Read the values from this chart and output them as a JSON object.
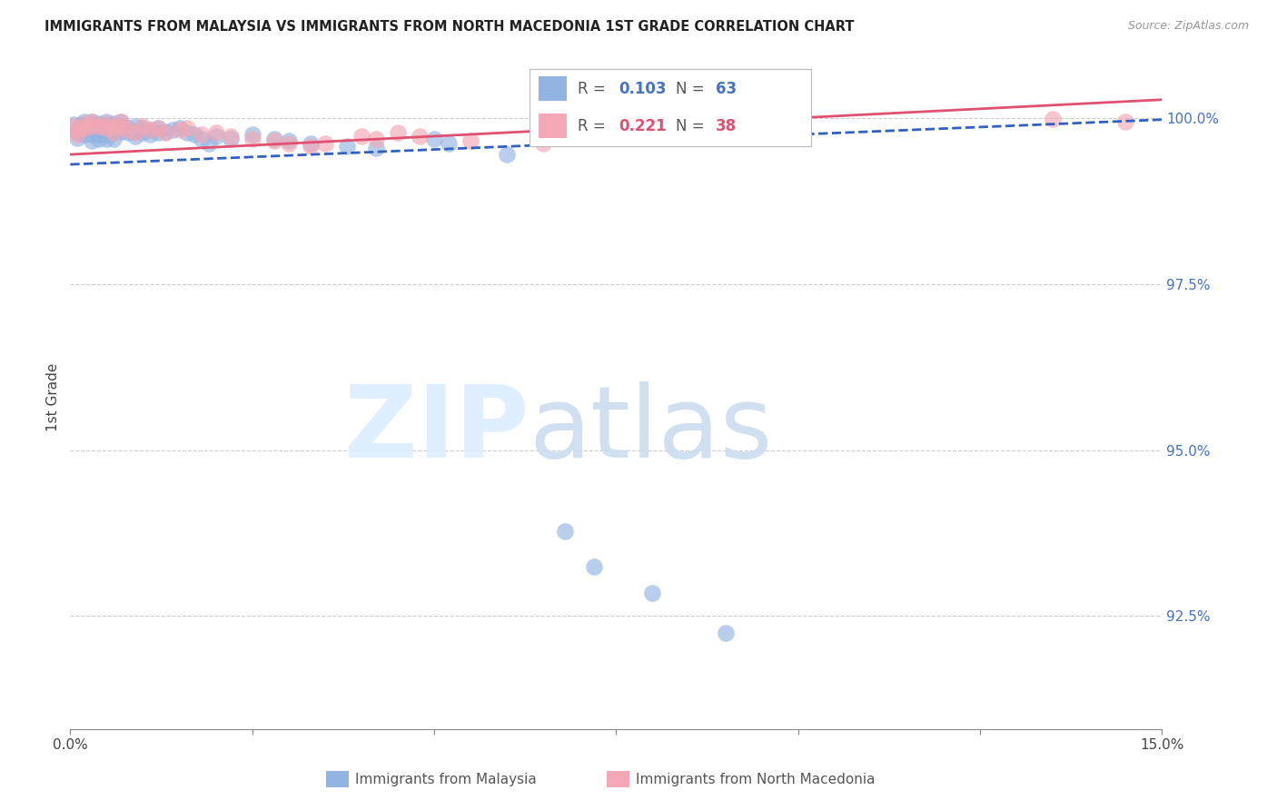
{
  "title": "IMMIGRANTS FROM MALAYSIA VS IMMIGRANTS FROM NORTH MACEDONIA 1ST GRADE CORRELATION CHART",
  "source": "Source: ZipAtlas.com",
  "ylabel": "1st Grade",
  "right_yticks": [
    "100.0%",
    "97.5%",
    "95.0%",
    "92.5%"
  ],
  "right_ytick_vals": [
    1.0,
    0.975,
    0.95,
    0.925
  ],
  "xlim": [
    0.0,
    0.15
  ],
  "ylim": [
    0.908,
    1.008
  ],
  "malaysia_R": 0.103,
  "malaysia_N": 63,
  "macedonia_R": 0.221,
  "macedonia_N": 38,
  "malaysia_color": "#92b4e3",
  "macedonia_color": "#f4a7b4",
  "malaysia_line_color": "#3060c0",
  "macedonia_line_color": "#e05070",
  "malaysia_x": [
    0.0005,
    0.001,
    0.001,
    0.0015,
    0.002,
    0.002,
    0.002,
    0.002,
    0.003,
    0.003,
    0.003,
    0.003,
    0.003,
    0.003,
    0.004,
    0.004,
    0.004,
    0.004,
    0.005,
    0.005,
    0.005,
    0.005,
    0.005,
    0.006,
    0.006,
    0.006,
    0.006,
    0.007,
    0.007,
    0.007,
    0.008,
    0.008,
    0.009,
    0.009,
    0.009,
    0.01,
    0.01,
    0.011,
    0.011,
    0.012,
    0.012,
    0.013,
    0.014,
    0.015,
    0.016,
    0.017,
    0.018,
    0.019,
    0.02,
    0.022,
    0.025,
    0.028,
    0.03,
    0.033,
    0.038,
    0.042,
    0.05,
    0.052,
    0.06,
    0.068,
    0.072,
    0.08,
    0.09
  ],
  "malaysia_y": [
    0.999,
    0.997,
    0.998,
    0.999,
    0.9985,
    0.9975,
    0.999,
    0.9995,
    0.9985,
    0.9975,
    0.9965,
    0.999,
    0.9995,
    0.9988,
    0.9985,
    0.9992,
    0.9975,
    0.9968,
    0.9995,
    0.999,
    0.9985,
    0.9975,
    0.9968,
    0.9992,
    0.9985,
    0.9978,
    0.9968,
    0.9995,
    0.9988,
    0.998,
    0.9985,
    0.9978,
    0.9988,
    0.998,
    0.9972,
    0.9985,
    0.9978,
    0.9982,
    0.9975,
    0.9985,
    0.9978,
    0.998,
    0.9982,
    0.9985,
    0.9978,
    0.9975,
    0.9968,
    0.9962,
    0.9972,
    0.9968,
    0.9975,
    0.9968,
    0.9965,
    0.9962,
    0.9958,
    0.9955,
    0.9968,
    0.9962,
    0.9945,
    0.9378,
    0.9325,
    0.9285,
    0.9225
  ],
  "macedonia_x": [
    0.0005,
    0.001,
    0.001,
    0.002,
    0.002,
    0.003,
    0.003,
    0.004,
    0.005,
    0.005,
    0.006,
    0.006,
    0.007,
    0.007,
    0.008,
    0.009,
    0.01,
    0.011,
    0.012,
    0.013,
    0.015,
    0.016,
    0.018,
    0.02,
    0.022,
    0.025,
    0.028,
    0.03,
    0.033,
    0.035,
    0.04,
    0.042,
    0.045,
    0.048,
    0.055,
    0.065,
    0.135,
    0.145
  ],
  "macedonia_y": [
    0.9988,
    0.9982,
    0.9975,
    0.9992,
    0.9985,
    0.9995,
    0.9988,
    0.9988,
    0.9992,
    0.9985,
    0.9988,
    0.9978,
    0.9995,
    0.9988,
    0.9982,
    0.9978,
    0.9988,
    0.9982,
    0.9985,
    0.9978,
    0.9982,
    0.9985,
    0.9975,
    0.9978,
    0.9972,
    0.9968,
    0.9965,
    0.9962,
    0.9958,
    0.9962,
    0.9972,
    0.9968,
    0.9978,
    0.9972,
    0.9965,
    0.9962,
    0.9998,
    0.9995
  ]
}
